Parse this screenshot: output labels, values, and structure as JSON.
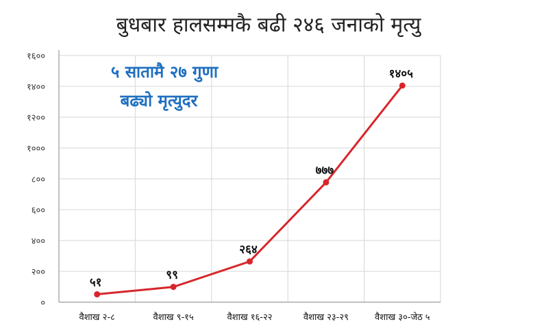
{
  "chart_data": {
    "type": "line",
    "title": "बुधबार हालसम्मकै बढी २४६ जनाको मृत्यु",
    "annotation": [
      "५ सातामै २७ गुणा",
      "बढ्यो मृत्युदर"
    ],
    "categories": [
      "वैशाख २-८",
      "वैशाख ९-१५",
      "वैशाख १६-२२",
      "वैशाख २३-२९",
      "वैशाख ३०-जेठ ५"
    ],
    "values": [
      51,
      99,
      264,
      777,
      1405
    ],
    "data_labels": [
      "५१",
      "९९",
      "२६४",
      "७७७",
      "१४०५"
    ],
    "ylim": [
      0,
      1600
    ],
    "yticks": [
      0,
      200,
      400,
      600,
      800,
      1000,
      1200,
      1400,
      1600
    ],
    "ytick_labels": [
      "०",
      "२००",
      "४००",
      "६००",
      "८००",
      "१०००",
      "१२००",
      "१४००",
      "१६००"
    ],
    "grid": true,
    "line_color": "#d7262b"
  }
}
